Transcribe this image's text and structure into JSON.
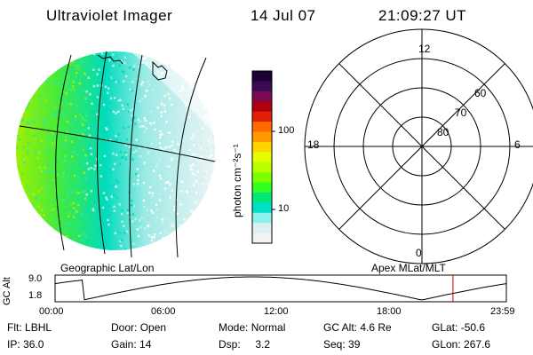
{
  "header": {
    "instrument": "Ultraviolet Imager",
    "date": "14 Jul 07",
    "time": "21:09:27 UT"
  },
  "colorbar": {
    "unit_label": "photon cm⁻²s⁻¹",
    "ticks": [
      "100",
      "10"
    ],
    "colors": [
      "#1a0033",
      "#3a0a55",
      "#7a0a50",
      "#b00010",
      "#e02000",
      "#ff6a00",
      "#ff9900",
      "#ffd400",
      "#e6ff00",
      "#b8ff00",
      "#7cff00",
      "#30ff20",
      "#00e878",
      "#00e0c8",
      "#8ef0ea",
      "#dcf0f0",
      "#f2f2f2"
    ]
  },
  "map": {
    "left_caption": "Geographic Lat/Lon",
    "right_caption": "Apex MLat/MLT"
  },
  "polar": {
    "mlt_labels": {
      "top": "12",
      "left": "18",
      "right": "6",
      "bottom": "0"
    },
    "ring_labels": [
      "80",
      "70",
      "60"
    ]
  },
  "timeline": {
    "ylabel": "GC Alt",
    "y_ticks": [
      "9.0",
      "1.8"
    ],
    "x_ticks": [
      "00:00",
      "06:00",
      "12:00",
      "18:00",
      "23:59"
    ],
    "current_marker_hours": 21.16,
    "marker_color": "#cc0000"
  },
  "footer": {
    "row1": [
      {
        "label": "Flt:",
        "value": "LBHL"
      },
      {
        "label": "Door:",
        "value": "Open"
      },
      {
        "label": "Mode:",
        "value": "Normal"
      },
      {
        "label": "GC Alt:",
        "value": "4.6 Re"
      },
      {
        "label": "GLat:",
        "value": "-50.6"
      }
    ],
    "row2": [
      {
        "label": "IP:",
        "value": "36.0"
      },
      {
        "label": "Gain:",
        "value": "14"
      },
      {
        "label": "Dsp:",
        "value": "3.2"
      },
      {
        "label": "Seq:",
        "value": "39"
      },
      {
        "label": "GLon:",
        "value": "267.6"
      }
    ]
  }
}
